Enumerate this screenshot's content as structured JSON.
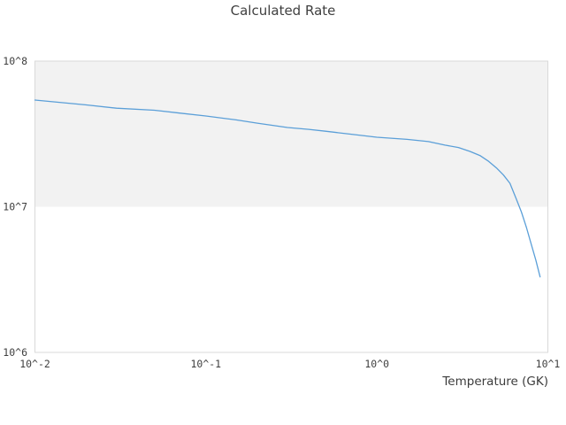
{
  "colors": {
    "line": "#5b9fd8",
    "band_fill": "#f2f2f2",
    "plot_border": "#d9d9d9",
    "title_text": "#3f3f3f",
    "tick_text": "#3f3f3f",
    "background": "#ffffff"
  },
  "chart_data": {
    "type": "line",
    "title": "Calculated Rate",
    "xlabel": "Temperature (GK)",
    "ylabel": "",
    "x_scale": "log",
    "y_scale": "log",
    "xlim": [
      0.01,
      10
    ],
    "ylim": [
      1000000.0,
      100000000.0
    ],
    "grid": false,
    "legend": false,
    "x_ticks": [
      {
        "value": 0.01,
        "label": "10^-2"
      },
      {
        "value": 0.1,
        "label": "10^-1"
      },
      {
        "value": 1,
        "label": "10^0"
      },
      {
        "value": 10,
        "label": "10^1"
      }
    ],
    "y_ticks": [
      {
        "value": 1000000.0,
        "label": "10^6"
      },
      {
        "value": 10000000.0,
        "label": "10^7"
      },
      {
        "value": 100000000.0,
        "label": "10^8"
      }
    ],
    "highlight_band": {
      "y_from": 10000000.0,
      "y_to": 100000000.0
    },
    "series": [
      {
        "name": "Calculated Rate",
        "x": [
          0.01,
          0.02,
          0.03,
          0.05,
          0.07,
          0.1,
          0.15,
          0.2,
          0.3,
          0.4,
          0.5,
          0.7,
          1.0,
          1.5,
          2.0,
          2.5,
          3.0,
          3.5,
          4.0,
          4.5,
          5.0,
          5.5,
          6.0,
          6.5,
          7.0,
          7.5,
          8.0,
          8.5,
          9.0
        ],
        "y": [
          54000000.0,
          50000000.0,
          47500000.0,
          46000000.0,
          44000000.0,
          42000000.0,
          39500000.0,
          37500000.0,
          35000000.0,
          34000000.0,
          33000000.0,
          31500000.0,
          30000000.0,
          29000000.0,
          28000000.0,
          26500000.0,
          25500000.0,
          24000000.0,
          22500000.0,
          20500000.0,
          18500000.0,
          16500000.0,
          14500000.0,
          11500000.0,
          9200000.0,
          7200000.0,
          5500000.0,
          4300000.0,
          3300000.0
        ]
      }
    ]
  }
}
